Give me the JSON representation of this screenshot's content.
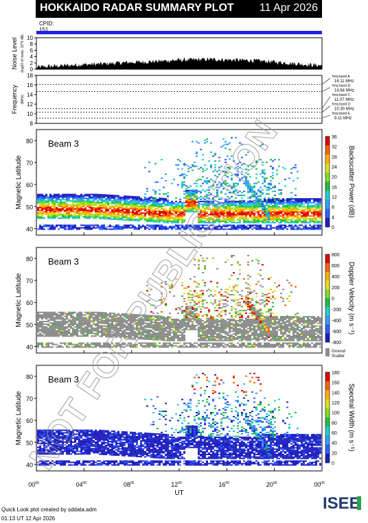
{
  "header": {
    "title": "HOKKAIDO RADAR SUMMARY PLOT",
    "date": "11 Apr 2026"
  },
  "cpid": {
    "label": "CPID:",
    "value": "151"
  },
  "watermark": "NOT FOR PUBLICATION",
  "footer": {
    "line1": "Quick Look plot created by sddata.adm",
    "line2": "01:13 UT 12 Apr 2026"
  },
  "logo": "ISEE",
  "chart_data": [
    {
      "type": "area",
      "name": "noise",
      "ylabel": "Noise Level",
      "ylabel_sub": "(log10 of noise, 10^5 dB)",
      "ylim": [
        0,
        10
      ],
      "yticks": [
        "0",
        "2",
        "4",
        "6",
        "8",
        "10"
      ],
      "profile": [
        0.6,
        0.9,
        1.1,
        1.3,
        1.5,
        1.6,
        1.8,
        2.0,
        2.2,
        2.3,
        2.5,
        2.7,
        2.9,
        3.0,
        3.1,
        3.1,
        3.0,
        2.9,
        2.8,
        2.6,
        2.3,
        2.0,
        1.7,
        1.4,
        1.2
      ]
    },
    {
      "type": "line",
      "name": "frequency",
      "ylabel": "Frequency",
      "ylabel_sub": "(MHz)",
      "ylim": [
        8,
        18
      ],
      "yticks": [
        "8",
        "10",
        "12",
        "14",
        "16",
        "18"
      ],
      "bands": [
        {
          "name": "freq band A",
          "mhz": 16.11,
          "label": "16.11 MHz"
        },
        {
          "name": "freq band B",
          "mhz": 14.64,
          "label": "14.64 MHz"
        },
        {
          "name": "freq band C",
          "mhz": 11.07,
          "label": "11.07 MHz"
        },
        {
          "name": "freq band D",
          "mhz": 10.3,
          "label": "10.30 MHz"
        },
        {
          "name": "freq band E",
          "mhz": 9.11,
          "label": "9.11 MHz"
        }
      ]
    },
    {
      "type": "heatmap",
      "name": "power",
      "beam": "Beam  3",
      "ylabel": "Magnetic Latitude",
      "ylim": [
        37,
        85
      ],
      "yticks": [
        "40",
        "50",
        "60",
        "70",
        "80"
      ],
      "colorbar_label": "Backscatter Power (dB)",
      "colorbar_ticks": [
        "0",
        "4",
        "8",
        "12",
        "16",
        "20",
        "24",
        "28",
        "32",
        "36"
      ],
      "colors": [
        "#2020c0",
        "#3060ff",
        "#30a0ff",
        "#20d0d0",
        "#20c040",
        "#80e020",
        "#e0e020",
        "#ffb000",
        "#ff6000",
        "#e00000"
      ]
    },
    {
      "type": "heatmap",
      "name": "velocity",
      "beam": "Beam  3",
      "ylabel": "Magnetic Latitude",
      "ylim": [
        37,
        85
      ],
      "yticks": [
        "40",
        "50",
        "60",
        "70",
        "80"
      ],
      "colorbar_label": "Doppler Velocity (m s⁻¹)",
      "colorbar_ticks": [
        "800",
        "600",
        "400",
        "200",
        "0",
        "-200",
        "-400",
        "-600",
        "-800"
      ],
      "ground_label": "Ground Scatter",
      "colors": [
        "#2020c0",
        "#3060ff",
        "#30a0ff",
        "#20d0d0",
        "#20c040",
        "#80e020",
        "#e0e020",
        "#ffb000",
        "#ff6000",
        "#e00000"
      ]
    },
    {
      "type": "heatmap",
      "name": "width",
      "beam": "Beam  3",
      "ylabel": "Magnetic Latitude",
      "ylim": [
        37,
        85
      ],
      "yticks": [
        "40",
        "50",
        "60",
        "70",
        "80"
      ],
      "colorbar_label": "Spectral Width (m s⁻¹)",
      "colorbar_ticks": [
        "0",
        "20",
        "40",
        "60",
        "80",
        "100",
        "120",
        "140",
        "160",
        "180"
      ],
      "colors": [
        "#2020c0",
        "#3060ff",
        "#30a0ff",
        "#20d0d0",
        "#20c040",
        "#80e020",
        "#e0e020",
        "#ffb000",
        "#ff6000",
        "#e00000"
      ]
    }
  ],
  "xaxis": {
    "label": "UT",
    "ticks": [
      "00",
      "04",
      "08",
      "12",
      "16",
      "20",
      "00"
    ],
    "tick_sup": "00",
    "range_hours": [
      0,
      24
    ]
  }
}
